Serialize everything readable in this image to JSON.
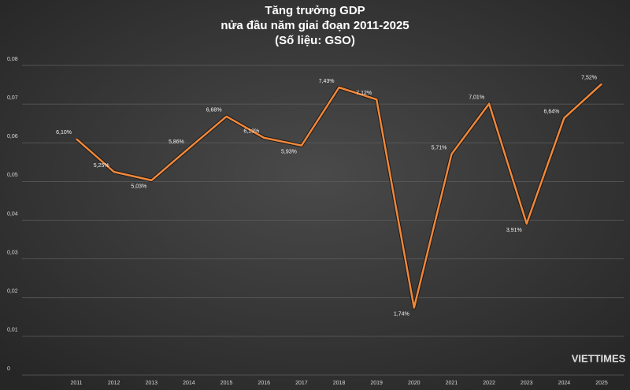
{
  "chart_data": {
    "type": "line",
    "title": "Tăng trưởng GDP",
    "subtitle": "nửa đầu năm giai đoạn 2011-2025",
    "source": "(Số liệu: GSO)",
    "logo": "VIETTIMES",
    "categories": [
      "2011",
      "2012",
      "2013",
      "2014",
      "2015",
      "2016",
      "2017",
      "2018",
      "2019",
      "2020",
      "2021",
      "2022",
      "2023",
      "2024",
      "2025"
    ],
    "series": [
      {
        "name": "GDP",
        "color": "#f0873a",
        "values": [
          0.061,
          0.0525,
          0.0503,
          0.0586,
          0.0668,
          0.0613,
          0.0593,
          0.0743,
          0.0712,
          0.0174,
          0.0571,
          0.0701,
          0.0391,
          0.0664,
          0.0752
        ],
        "value_labels": [
          "6,10%",
          "5,25%",
          "5,03%",
          "5,86%",
          "6,68%",
          "6,13%",
          "5,93%",
          "7,43%",
          "7,12%",
          "1,74%",
          "5,71%",
          "7,01%",
          "3,91%",
          "6,64%",
          "7,52%"
        ]
      }
    ],
    "ylim": [
      0,
      0.08
    ],
    "yticks": [
      0,
      {
        "value": 0.01,
        "label": "0,01"
      },
      {
        "value": 0.02,
        "label": "0,02"
      },
      {
        "value": 0.03,
        "label": "0,03"
      },
      {
        "value": 0.04,
        "label": "0,04"
      },
      {
        "value": 0.05,
        "label": "0,05"
      },
      {
        "value": 0.06,
        "label": "0,06"
      },
      {
        "value": 0.07,
        "label": "0,07"
      },
      {
        "value": 0.08,
        "label": "0,08"
      }
    ],
    "grid": true
  }
}
